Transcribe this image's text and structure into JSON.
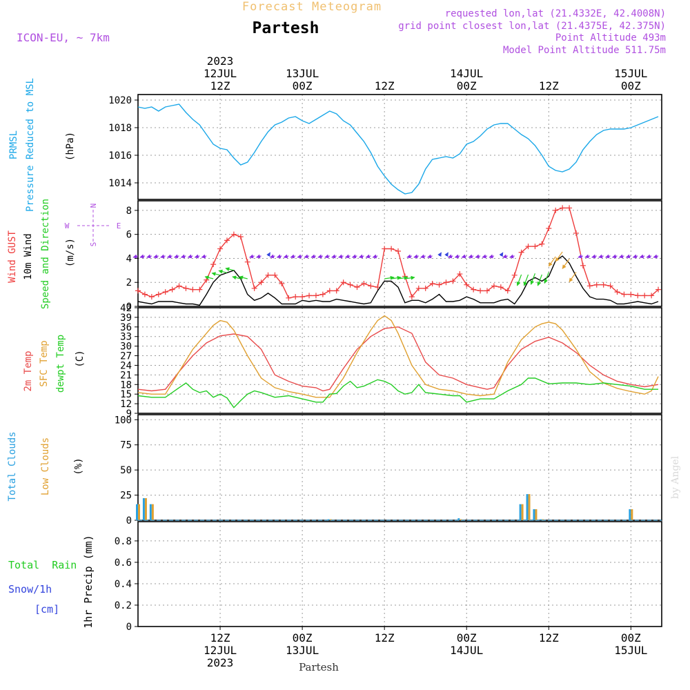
{
  "header": {
    "subtitle": "Forecast Meteogram",
    "title": "Partesh",
    "model": "ICON-EU, ~ 7km",
    "requested": "requested lon,lat (21.4332E, 42.4008N)",
    "grid_point": "grid point closest lon,lat (21.4375E, 42.375N)",
    "point_alt": "Point Altitude 493m",
    "model_alt": "Model Point Altitude 511.75m",
    "credit": "by Angel",
    "footer_name": "Partesh"
  },
  "time_axis": {
    "top_labels": [
      {
        "t": 12,
        "lines": [
          "2023",
          "12JUL",
          "12Z"
        ]
      },
      {
        "t": 24,
        "lines": [
          "13JUL",
          "00Z"
        ]
      },
      {
        "t": 36,
        "lines": [
          "12Z"
        ]
      },
      {
        "t": 48,
        "lines": [
          "14JUL",
          "00Z"
        ]
      },
      {
        "t": 60,
        "lines": [
          "12Z"
        ]
      },
      {
        "t": 72,
        "lines": [
          "15JUL",
          "00Z"
        ]
      }
    ],
    "bottom_labels": [
      {
        "t": 12,
        "lines": [
          "12Z",
          "12JUL",
          "2023"
        ]
      },
      {
        "t": 24,
        "lines": [
          "00Z",
          "13JUL"
        ]
      },
      {
        "t": 36,
        "lines": [
          "12Z"
        ]
      },
      {
        "t": 48,
        "lines": [
          "00Z",
          "14JUL"
        ]
      },
      {
        "t": 60,
        "lines": [
          "12Z"
        ]
      },
      {
        "t": 72,
        "lines": [
          "00Z",
          "15JUL"
        ]
      }
    ]
  },
  "panel_labels": {
    "pressure": {
      "name": "PRMSL",
      "desc": "Pressure Reduced to MSL",
      "unit": "(hPa)"
    },
    "wind": {
      "gust": "Wind GUST",
      "wind10": "10m Wind",
      "dir": "Speed and Direction",
      "unit": "(m/s)",
      "compass_n": "N",
      "compass_s": "S",
      "compass_e": "E",
      "compass_w": "W"
    },
    "temp": {
      "t2m": "2m Temp",
      "sfc": "SFC Temp",
      "dew": "dewpt Temp",
      "unit": "(C)"
    },
    "clouds": {
      "total": "Total Clouds",
      "low": "Low Clouds",
      "unit": "(%)"
    },
    "precip": {
      "rain": "Total  Rain",
      "snow": "Snow/1h",
      "snow_unit": "[cm]",
      "unit": "1hr Precip (mm)"
    }
  },
  "colors": {
    "pressure": "#1aa7e8",
    "gust": "#ee3b3b",
    "wind": "#000000",
    "t2m": "#e84a4a",
    "sfc": "#e0a030",
    "dew": "#22cc22",
    "total_clouds": "#2aa0e0",
    "low_clouds": "#e0a030",
    "rain": "#22cc22",
    "snow": "#3344dd",
    "header_orange": "#f0c070",
    "header_purple": "#b050e0"
  },
  "chart_data": [
    {
      "type": "line",
      "name": "pressure",
      "title": "PRMSL Pressure Reduced to MSL",
      "ylabel": "(hPa)",
      "xlim": [
        0,
        76.5
      ],
      "ylim": [
        1012.8,
        1020.4
      ],
      "yticks": [
        1014,
        1016,
        1018,
        1020
      ],
      "series": [
        {
          "name": "PRMSL",
          "color": "#1aa7e8",
          "x": [
            0,
            1,
            2,
            3,
            4,
            5,
            6,
            7,
            8,
            9,
            10,
            11,
            12,
            13,
            14,
            15,
            16,
            17,
            18,
            19,
            20,
            21,
            22,
            23,
            24,
            25,
            26,
            27,
            28,
            29,
            30,
            31,
            32,
            33,
            34,
            35,
            36,
            37,
            38,
            39,
            40,
            41,
            42,
            43,
            44,
            45,
            46,
            47,
            48,
            49,
            50,
            51,
            52,
            53,
            54,
            55,
            56,
            57,
            58,
            59,
            60,
            61,
            62,
            63,
            64,
            65,
            66,
            67,
            68,
            69,
            70,
            71,
            72,
            73,
            74,
            75,
            76
          ],
          "values": [
            1019.5,
            1019.4,
            1019.5,
            1019.2,
            1019.5,
            1019.6,
            1019.7,
            1019.1,
            1018.6,
            1018.2,
            1017.5,
            1016.8,
            1016.5,
            1016.4,
            1015.8,
            1015.3,
            1015.5,
            1016.2,
            1017.0,
            1017.7,
            1018.2,
            1018.4,
            1018.7,
            1018.8,
            1018.5,
            1018.3,
            1018.6,
            1018.9,
            1019.2,
            1019.0,
            1018.5,
            1018.2,
            1017.6,
            1017.0,
            1016.2,
            1015.2,
            1014.5,
            1013.9,
            1013.5,
            1013.2,
            1013.3,
            1013.9,
            1015.0,
            1015.7,
            1015.8,
            1015.9,
            1015.8,
            1016.1,
            1016.8,
            1017.0,
            1017.4,
            1017.9,
            1018.2,
            1018.3,
            1018.3,
            1017.9,
            1017.5,
            1017.2,
            1016.7,
            1016.0,
            1015.2,
            1014.9,
            1014.8,
            1015.0,
            1015.5,
            1016.4,
            1017.0,
            1017.5,
            1017.8,
            1017.9,
            1017.9,
            1017.9,
            1018.0,
            1018.2,
            1018.4,
            1018.6,
            1018.8
          ]
        }
      ]
    },
    {
      "type": "line",
      "name": "wind",
      "title": "Wind GUST, 10m Wind Speed and Direction",
      "ylabel": "(m/s)",
      "xlim": [
        0,
        76.5
      ],
      "ylim": [
        0,
        8.8
      ],
      "yticks": [
        0,
        2,
        4,
        6,
        8
      ],
      "series": [
        {
          "name": "Wind GUST",
          "color": "#ee3b3b",
          "markers": "plus",
          "x": [
            0,
            1,
            2,
            3,
            4,
            5,
            6,
            7,
            8,
            9,
            10,
            11,
            12,
            13,
            14,
            15,
            16,
            17,
            18,
            19,
            20,
            21,
            22,
            23,
            24,
            25,
            26,
            27,
            28,
            29,
            30,
            31,
            32,
            33,
            34,
            35,
            36,
            37,
            38,
            39,
            40,
            41,
            42,
            43,
            44,
            45,
            46,
            47,
            48,
            49,
            50,
            51,
            52,
            53,
            54,
            55,
            56,
            57,
            58,
            59,
            60,
            61,
            62,
            63,
            64,
            65,
            66,
            67,
            68,
            69,
            70,
            71,
            72,
            73,
            74,
            75,
            76
          ],
          "values": [
            1.3,
            1.0,
            0.8,
            1.0,
            1.2,
            1.4,
            1.7,
            1.5,
            1.4,
            1.4,
            2.2,
            3.5,
            4.8,
            5.5,
            6.0,
            5.8,
            3.7,
            1.5,
            2.0,
            2.6,
            2.6,
            1.9,
            0.7,
            0.8,
            0.8,
            0.9,
            0.9,
            1.0,
            1.3,
            1.3,
            2.0,
            1.8,
            1.6,
            1.9,
            1.7,
            1.6,
            4.8,
            4.8,
            4.6,
            2.5,
            0.8,
            1.5,
            1.5,
            1.9,
            1.8,
            2.0,
            2.1,
            2.7,
            1.8,
            1.4,
            1.3,
            1.3,
            1.7,
            1.6,
            1.3,
            2.6,
            4.5,
            5.0,
            5.0,
            5.2,
            6.5,
            8.0,
            8.2,
            8.2,
            6.1,
            3.4,
            1.7,
            1.8,
            1.8,
            1.7,
            1.2,
            1.0,
            1.0,
            0.9,
            0.9,
            0.9,
            1.4
          ]
        },
        {
          "name": "10m Wind",
          "color": "#000000",
          "x": [
            0,
            1,
            2,
            3,
            4,
            5,
            6,
            7,
            8,
            9,
            10,
            11,
            12,
            13,
            14,
            15,
            16,
            17,
            18,
            19,
            20,
            21,
            22,
            23,
            24,
            25,
            26,
            27,
            28,
            29,
            30,
            31,
            32,
            33,
            34,
            35,
            36,
            37,
            38,
            39,
            40,
            41,
            42,
            43,
            44,
            45,
            46,
            47,
            48,
            49,
            50,
            51,
            52,
            53,
            54,
            55,
            56,
            57,
            58,
            59,
            60,
            61,
            62,
            63,
            64,
            65,
            66,
            67,
            68,
            69,
            70,
            71,
            72,
            73,
            74,
            75,
            76
          ],
          "values": [
            0.4,
            0.3,
            0.2,
            0.4,
            0.4,
            0.4,
            0.3,
            0.2,
            0.2,
            0.1,
            1.0,
            2.0,
            2.6,
            2.8,
            3.0,
            2.3,
            1.0,
            0.5,
            0.7,
            1.1,
            0.7,
            0.2,
            0.2,
            0.2,
            0.5,
            0.4,
            0.5,
            0.4,
            0.4,
            0.6,
            0.5,
            0.4,
            0.3,
            0.2,
            0.3,
            1.3,
            2.1,
            2.1,
            1.6,
            0.3,
            0.5,
            0.5,
            0.3,
            0.6,
            1.0,
            0.4,
            0.4,
            0.5,
            0.8,
            0.6,
            0.3,
            0.3,
            0.3,
            0.5,
            0.6,
            0.2,
            1.0,
            2.1,
            2.4,
            2.1,
            2.5,
            3.8,
            4.2,
            3.6,
            2.5,
            1.5,
            0.8,
            0.6,
            0.6,
            0.5,
            0.2,
            0.2,
            0.3,
            0.4,
            0.3,
            0.2,
            0.4
          ]
        }
      ],
      "direction_arrows_speed_level": 4.2
    },
    {
      "type": "line",
      "name": "temperature",
      "title": "2m Temp, SFC Temp, dewpt Temp",
      "ylabel": "(C)",
      "xlim": [
        0,
        76.5
      ],
      "ylim": [
        9,
        42
      ],
      "yticks": [
        9,
        12,
        15,
        18,
        21,
        24,
        27,
        30,
        33,
        36,
        39,
        42
      ],
      "series": [
        {
          "name": "2m Temp",
          "color": "#e84a4a",
          "x": [
            0,
            2,
            4,
            6,
            8,
            10,
            12,
            14,
            16,
            18,
            20,
            22,
            24,
            26,
            27,
            28,
            30,
            32,
            34,
            36,
            38,
            40,
            42,
            44,
            46,
            48,
            50,
            51,
            52,
            54,
            56,
            58,
            60,
            62,
            64,
            66,
            68,
            70,
            72,
            74,
            76
          ],
          "values": [
            16.5,
            16.0,
            16.5,
            22,
            27,
            31,
            33.2,
            33.8,
            33,
            29,
            21,
            19,
            17.5,
            17,
            16,
            16.5,
            23,
            29,
            33,
            35.5,
            36,
            34,
            25,
            21,
            20,
            18,
            17,
            16.5,
            17,
            24,
            29,
            31.5,
            32.8,
            31,
            28,
            24,
            21,
            19,
            18,
            17.3,
            18
          ]
        },
        {
          "name": "SFC Temp",
          "color": "#e0a030",
          "x": [
            0,
            2,
            4,
            6,
            8,
            10,
            11,
            12,
            13,
            14,
            16,
            18,
            20,
            22,
            24,
            26,
            28,
            30,
            32,
            34,
            35,
            36,
            37,
            38,
            40,
            42,
            44,
            46,
            48,
            50,
            52,
            54,
            56,
            58,
            59,
            60,
            61,
            62,
            64,
            66,
            68,
            70,
            72,
            74,
            75,
            76
          ],
          "values": [
            15.5,
            15,
            15,
            22,
            29,
            34,
            36.5,
            38,
            37.5,
            35,
            27,
            20,
            17,
            15.8,
            15,
            14,
            14,
            20,
            28,
            35,
            38,
            39.5,
            38,
            34,
            24,
            18,
            16.5,
            16,
            15,
            14.5,
            15,
            25,
            32,
            36,
            37,
            37.5,
            37,
            35,
            29,
            22,
            18.5,
            16.8,
            15.8,
            15,
            16,
            20.5
          ]
        },
        {
          "name": "dewpt Temp",
          "color": "#22cc22",
          "x": [
            0,
            2,
            4,
            6,
            7,
            8,
            9,
            10,
            11,
            12,
            13,
            14,
            15,
            16,
            17,
            18,
            20,
            22,
            24,
            26,
            27,
            28,
            29,
            30,
            31,
            32,
            33,
            34,
            35,
            36,
            37,
            38,
            39,
            40,
            41,
            42,
            44,
            46,
            47,
            48,
            50,
            52,
            54,
            56,
            57,
            58,
            60,
            62,
            64,
            66,
            68,
            70,
            72,
            74,
            76
          ],
          "values": [
            14.5,
            14,
            14,
            17,
            18.5,
            16.5,
            15.5,
            16,
            14,
            15,
            13.8,
            10.8,
            13,
            15,
            16,
            15.5,
            14,
            14.5,
            13.5,
            12.5,
            12.5,
            15,
            15.2,
            17.5,
            19,
            17,
            17.5,
            18.5,
            19.5,
            19,
            18,
            16,
            15,
            15.5,
            18,
            15.5,
            15,
            14.5,
            14.5,
            12.5,
            13.5,
            13.5,
            16,
            18,
            20,
            20,
            18.2,
            18.5,
            18.5,
            18,
            18.5,
            18,
            17.5,
            16.5,
            16.5
          ]
        }
      ]
    },
    {
      "type": "bar",
      "name": "clouds",
      "title": "Total Clouds, Low Clouds",
      "ylabel": "(%)",
      "xlim": [
        0,
        76.5
      ],
      "ylim": [
        0,
        105
      ],
      "yticks": [
        0,
        25,
        50,
        75,
        100
      ],
      "series": [
        {
          "name": "Total Clouds",
          "color": "#2aa0e0",
          "x": [
            0,
            1,
            2,
            28,
            47,
            56,
            57,
            58,
            59,
            72
          ],
          "values": [
            16,
            22,
            16,
            1,
            2,
            16,
            26,
            11,
            1,
            11
          ]
        },
        {
          "name": "Low Clouds",
          "color": "#e0a030",
          "x": [
            0,
            1,
            2,
            28,
            47,
            56,
            57,
            58,
            59,
            72
          ],
          "values": [
            16,
            22,
            16,
            1,
            1,
            16,
            26,
            11,
            1,
            11
          ]
        }
      ]
    },
    {
      "type": "bar",
      "name": "precipitation",
      "title": "1hr Precip",
      "ylabel": "1hr Precip (mm)",
      "xlim": [
        0,
        76.5
      ],
      "ylim": [
        0,
        0.98
      ],
      "yticks": [
        0,
        0.2,
        0.4,
        0.6,
        0.8
      ],
      "series": [
        {
          "name": "Total Rain",
          "color": "#22cc22",
          "x": [],
          "values": []
        },
        {
          "name": "Snow/1h",
          "color": "#3344dd",
          "x": [],
          "values": []
        }
      ]
    }
  ]
}
